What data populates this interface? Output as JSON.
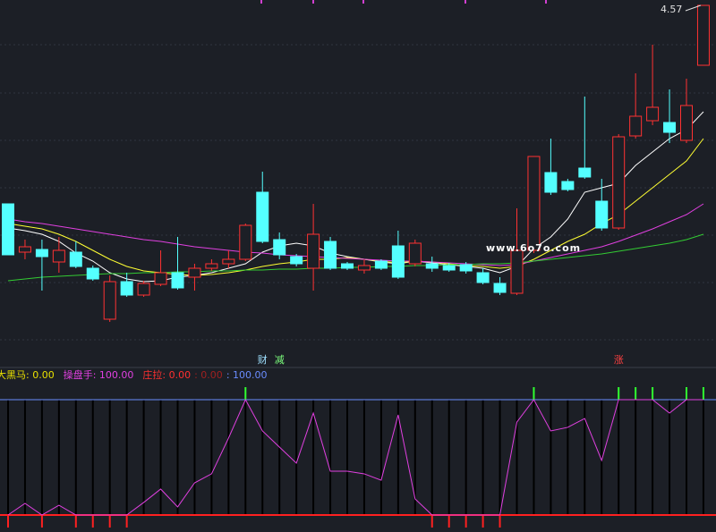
{
  "chart_data": [
    {
      "type": "candlestick",
      "open": [
        3.46,
        3.19,
        3.205,
        3.135,
        3.19,
        3.1,
        2.815,
        3.025,
        2.95,
        3.01,
        3.075,
        3.05,
        3.1,
        3.125,
        3.15,
        3.525,
        3.26,
        3.165,
        3.1,
        3.25,
        3.125,
        3.09,
        3.14,
        3.225,
        3.125,
        3.125,
        3.115,
        3.12,
        3.075,
        3.015,
        2.96,
        3.2,
        3.635,
        3.585,
        3.66,
        3.475,
        3.325,
        3.84,
        3.925,
        3.915,
        3.815,
        4.235
      ],
      "high": [
        3.46,
        3.26,
        3.26,
        3.275,
        3.25,
        3.115,
        3.06,
        3.075,
        3.03,
        3.2,
        3.275,
        3.125,
        3.15,
        3.2,
        3.35,
        3.64,
        3.3,
        3.18,
        3.46,
        3.275,
        3.135,
        3.15,
        3.15,
        3.31,
        3.26,
        3.165,
        3.13,
        3.135,
        3.1,
        3.05,
        3.435,
        3.725,
        3.825,
        3.6,
        4.06,
        3.6,
        3.85,
        4.19,
        4.35,
        4.1,
        4.16,
        4.57
      ],
      "low": [
        3.175,
        3.15,
        2.975,
        3.075,
        3.1,
        3.03,
        2.8,
        2.94,
        2.94,
        3.0,
        2.98,
        2.975,
        3.085,
        3.1,
        3.14,
        3.24,
        3.15,
        3.11,
        2.975,
        3.09,
        3.09,
        3.07,
        3.09,
        3.04,
        3.11,
        3.08,
        3.08,
        3.07,
        3.01,
        2.95,
        2.95,
        3.185,
        3.51,
        3.53,
        3.6,
        3.31,
        3.315,
        3.825,
        3.9,
        3.8,
        3.8,
        4.235
      ],
      "close": [
        3.175,
        3.22,
        3.165,
        3.2,
        3.11,
        3.04,
        3.025,
        2.95,
        3.015,
        3.075,
        2.99,
        3.1,
        3.125,
        3.15,
        3.34,
        3.25,
        3.175,
        3.125,
        3.29,
        3.1,
        3.1,
        3.115,
        3.1,
        3.05,
        3.24,
        3.1,
        3.09,
        3.085,
        3.02,
        2.965,
        3.2,
        3.725,
        3.525,
        3.54,
        3.61,
        3.325,
        3.835,
        3.95,
        4.0,
        3.86,
        4.01,
        4.57
      ],
      "ylim": [
        2.7,
        4.6
      ],
      "up_color": "#ff3232",
      "down_color": "#54ffff",
      "series": [
        {
          "color": "#ffffff",
          "values": [
            3.325,
            3.31,
            3.29,
            3.25,
            3.185,
            3.14,
            3.075,
            3.04,
            3.025,
            3.03,
            3.05,
            3.06,
            3.075,
            3.1,
            3.125,
            3.19,
            3.225,
            3.24,
            3.225,
            3.185,
            3.165,
            3.15,
            3.135,
            3.125,
            3.14,
            3.13,
            3.12,
            3.11,
            3.1,
            3.075,
            3.11,
            3.21,
            3.275,
            3.375,
            3.525,
            3.55,
            3.575,
            3.675,
            3.75,
            3.825,
            3.875,
            3.975
          ]
        },
        {
          "color": "#ffff33",
          "values": [
            3.35,
            3.335,
            3.32,
            3.29,
            3.25,
            3.2,
            3.15,
            3.11,
            3.085,
            3.075,
            3.065,
            3.06,
            3.065,
            3.075,
            3.09,
            3.11,
            3.125,
            3.135,
            3.15,
            3.15,
            3.16,
            3.15,
            3.14,
            3.13,
            3.14,
            3.135,
            3.125,
            3.115,
            3.11,
            3.1,
            3.11,
            3.15,
            3.2,
            3.25,
            3.29,
            3.35,
            3.4,
            3.475,
            3.55,
            3.625,
            3.7,
            3.825
          ]
        },
        {
          "color": "#e040e0",
          "values": [
            3.375,
            3.36,
            3.35,
            3.335,
            3.32,
            3.305,
            3.29,
            3.275,
            3.26,
            3.25,
            3.235,
            3.22,
            3.21,
            3.2,
            3.19,
            3.185,
            3.175,
            3.17,
            3.165,
            3.16,
            3.155,
            3.15,
            3.145,
            3.14,
            3.14,
            3.135,
            3.13,
            3.125,
            3.12,
            3.115,
            3.12,
            3.14,
            3.16,
            3.18,
            3.2,
            3.22,
            3.25,
            3.285,
            3.32,
            3.36,
            3.4,
            3.46
          ]
        },
        {
          "color": "#33cc33",
          "values": [
            3.03,
            3.04,
            3.05,
            3.055,
            3.06,
            3.065,
            3.07,
            3.07,
            3.075,
            3.075,
            3.08,
            3.08,
            3.085,
            3.085,
            3.09,
            3.09,
            3.095,
            3.095,
            3.1,
            3.1,
            3.105,
            3.105,
            3.11,
            3.11,
            3.115,
            3.115,
            3.12,
            3.12,
            3.125,
            3.125,
            3.13,
            3.14,
            3.15,
            3.16,
            3.17,
            3.18,
            3.195,
            3.21,
            3.225,
            3.24,
            3.26,
            3.29
          ]
        }
      ],
      "markers": [
        {
          "index": 15,
          "label": "财",
          "color": "#9fe0ff"
        },
        {
          "index": 16,
          "label": "减",
          "color": "#7dff7d"
        },
        {
          "index": 36,
          "label": "涨",
          "color": "#ff4040"
        }
      ],
      "watermark": "www.6o7o.com"
    },
    {
      "type": "line",
      "header": [
        {
          "text": "大黑马: 0.00",
          "color": "#e8e000"
        },
        {
          "text": "操盘手: 100.00",
          "color": "#e040e0"
        },
        {
          "text": "庄拉: 0.00",
          "color": "#ff3030"
        },
        {
          "text": ": 0.00",
          "color": "#a02020"
        },
        {
          "text": ": 100.00",
          "color": "#6a8cff"
        }
      ],
      "ylim": [
        0,
        100
      ],
      "series": [
        {
          "color": "#e040e0",
          "values": [
            0,
            10.1,
            0,
            8.5,
            0,
            0,
            0,
            0,
            10.9,
            22.5,
            7.0,
            27.9,
            35.7,
            66.7,
            100,
            72.9,
            58.9,
            45.0,
            88.4,
            38.0,
            38.0,
            35.7,
            30.2,
            86.8,
            14.0,
            0,
            0,
            0,
            0,
            0,
            80.6,
            100,
            72.9,
            76.0,
            83.7,
            47.3,
            100,
            100,
            100,
            88.4,
            100,
            100
          ]
        }
      ],
      "signal_up": [
        14,
        31,
        36,
        37,
        38,
        40,
        41
      ],
      "signal_down": [
        0,
        2,
        4,
        5,
        6,
        7,
        25,
        26,
        27,
        28,
        29
      ]
    }
  ]
}
